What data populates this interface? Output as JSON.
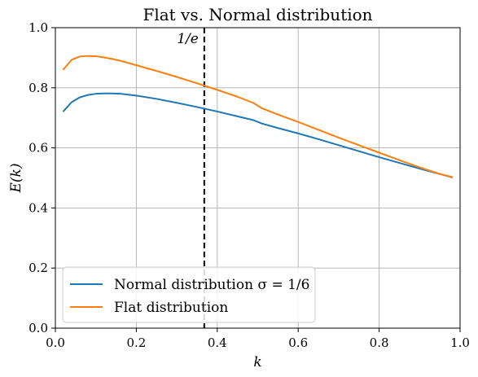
{
  "chart_data": {
    "type": "line",
    "title": "Flat vs. Normal distribution",
    "xlabel": "k",
    "ylabel": "E(k)",
    "xlim": [
      0.0,
      1.0
    ],
    "ylim": [
      0.0,
      1.0
    ],
    "xticks": [
      0.0,
      0.2,
      0.4,
      0.6,
      0.8,
      1.0
    ],
    "xtick_labels": [
      "0.0",
      "0.2",
      "0.4",
      "0.6",
      "0.8",
      "1.0"
    ],
    "yticks": [
      0.0,
      0.2,
      0.4,
      0.6,
      0.8,
      1.0
    ],
    "ytick_labels": [
      "0.0",
      "0.2",
      "0.4",
      "0.6",
      "0.8",
      "1.0"
    ],
    "grid": true,
    "legend_position": "lower-left",
    "series": [
      {
        "name": "Normal distribution σ = 1/6",
        "color": "#1f77b4",
        "x": [
          0.02,
          0.04,
          0.06,
          0.08,
          0.1,
          0.12,
          0.14,
          0.16,
          0.2,
          0.25,
          0.3,
          0.35,
          0.4,
          0.45,
          0.49,
          0.51,
          0.55,
          0.6,
          0.65,
          0.7,
          0.75,
          0.8,
          0.85,
          0.9,
          0.95,
          0.98
        ],
        "values": [
          0.722,
          0.752,
          0.768,
          0.776,
          0.78,
          0.781,
          0.781,
          0.78,
          0.774,
          0.763,
          0.75,
          0.736,
          0.721,
          0.705,
          0.692,
          0.681,
          0.666,
          0.648,
          0.629,
          0.609,
          0.589,
          0.569,
          0.55,
          0.531,
          0.513,
          0.502
        ]
      },
      {
        "name": "Flat distribution",
        "color": "#ff7f0e",
        "x": [
          0.02,
          0.04,
          0.06,
          0.08,
          0.1,
          0.12,
          0.14,
          0.16,
          0.2,
          0.25,
          0.3,
          0.35,
          0.4,
          0.45,
          0.49,
          0.51,
          0.55,
          0.6,
          0.65,
          0.7,
          0.75,
          0.8,
          0.85,
          0.9,
          0.95,
          0.98
        ],
        "values": [
          0.861,
          0.893,
          0.904,
          0.906,
          0.905,
          0.901,
          0.896,
          0.89,
          0.875,
          0.856,
          0.836,
          0.815,
          0.793,
          0.77,
          0.749,
          0.732,
          0.711,
          0.686,
          0.66,
          0.634,
          0.609,
          0.584,
          0.559,
          0.535,
          0.513,
          0.503
        ]
      }
    ],
    "annotations": [
      {
        "type": "vline",
        "x": 0.3679,
        "style": "dashed",
        "color": "#000000",
        "label": "1/e"
      }
    ]
  }
}
